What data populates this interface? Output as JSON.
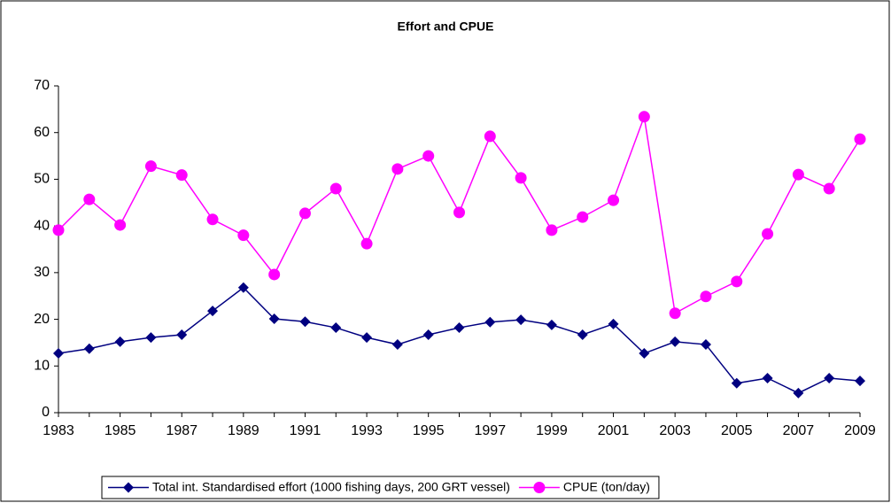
{
  "chart_data": {
    "type": "line",
    "title": "Effort and CPUE",
    "x": [
      1983,
      1984,
      1985,
      1986,
      1987,
      1988,
      1989,
      1990,
      1991,
      1992,
      1993,
      1994,
      1995,
      1996,
      1997,
      1998,
      1999,
      2000,
      2001,
      2002,
      2003,
      2004,
      2005,
      2006,
      2007,
      2008,
      2009
    ],
    "xlim": [
      1983,
      2009
    ],
    "xticks": [
      1983,
      1985,
      1987,
      1989,
      1991,
      1993,
      1995,
      1997,
      1999,
      2001,
      2003,
      2005,
      2007,
      2009
    ],
    "ylim": [
      0,
      70
    ],
    "yticks": [
      0,
      10,
      20,
      30,
      40,
      50,
      60,
      70
    ],
    "grid": false,
    "legend": "bottom",
    "series": [
      {
        "name": "Total int. Standardised effort (1000 fishing days, 200 GRT vessel)",
        "color": "#000080",
        "marker": "diamond",
        "values": [
          12.7,
          13.7,
          15.2,
          16.1,
          16.7,
          21.8,
          26.8,
          20.1,
          19.5,
          18.2,
          16.1,
          14.6,
          16.7,
          18.2,
          19.4,
          19.9,
          18.8,
          16.7,
          19.0,
          12.7,
          15.2,
          14.6,
          6.3,
          7.4,
          4.2,
          7.4,
          6.8
        ]
      },
      {
        "name": "CPUE (ton/day)",
        "color": "#ff00ff",
        "marker": "circle",
        "values": [
          39.1,
          45.7,
          40.2,
          52.8,
          50.9,
          41.4,
          38.0,
          29.6,
          42.7,
          48.0,
          36.2,
          52.2,
          55.0,
          42.9,
          59.2,
          50.3,
          39.1,
          41.9,
          45.5,
          63.4,
          21.3,
          24.9,
          28.1,
          38.3,
          51.0,
          48.0,
          58.6
        ]
      }
    ]
  }
}
